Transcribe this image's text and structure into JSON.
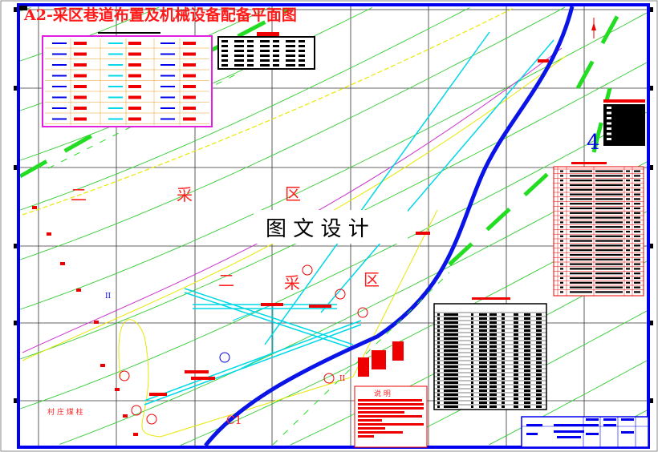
{
  "drawing": {
    "title": "A2-采区巷道布置及机械设备配备平面图",
    "watermark": "图 文 设 计",
    "zone_label_upper": [
      "二",
      "采",
      "区"
    ],
    "zone_label_lower": [
      "二",
      "采",
      "区"
    ],
    "pillar_label": "村 庄 煤 柱",
    "notes_title": "说  明",
    "section_number": "4",
    "fault_label": "C1",
    "section_mark_left": "II",
    "section_mark_right": "II"
  },
  "colors": {
    "frame": "#0000ee",
    "contour": "#33cc33",
    "roadway": "#00d8e8",
    "seam_outline": "#e8e800",
    "boundary": "#cc33cc",
    "annotation": "#ff1a1a",
    "fault": "#0a14e6",
    "dashed_line": "#22dd22"
  }
}
